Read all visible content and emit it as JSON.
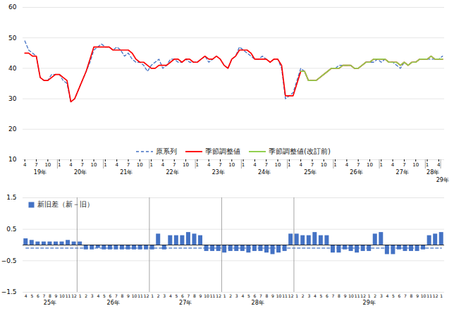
{
  "chart_data": [
    {
      "type": "line",
      "categories": [
        "4",
        null,
        null,
        "7",
        null,
        null,
        "10",
        null,
        null,
        "1",
        null,
        null,
        "4",
        null,
        null,
        "7",
        null,
        null,
        "10",
        null,
        null,
        "1",
        null,
        null,
        "4",
        null,
        null,
        "7",
        null,
        null,
        "10",
        null,
        null,
        "1",
        null,
        null,
        "4",
        null,
        null,
        "7",
        null,
        null,
        "10",
        null,
        null,
        "1",
        null,
        null,
        "4",
        null,
        null,
        "7",
        null,
        null,
        "10",
        null,
        null,
        "1",
        null,
        null,
        "4",
        null,
        null,
        "7",
        null,
        null,
        "10",
        null,
        null,
        "1",
        null,
        null,
        "4",
        null,
        null,
        "7",
        null,
        null,
        "10",
        null,
        null,
        "1",
        null,
        null,
        "4",
        null,
        null,
        "7",
        null,
        null,
        "10",
        null,
        null,
        "1",
        null,
        null,
        "4",
        null,
        null,
        "7",
        null,
        null,
        "10",
        null,
        null,
        "1",
        null,
        null,
        "4",
        null
      ],
      "series": [
        {
          "name": "原系列",
          "color": "#4472C4",
          "line_style": "dashed",
          "values": [
            49,
            46,
            45,
            44,
            37,
            36,
            36,
            38,
            38,
            38,
            36,
            35,
            29,
            30,
            33,
            36,
            39,
            42,
            46,
            47,
            48,
            47,
            47,
            46,
            47,
            46,
            44,
            45,
            43,
            42,
            42,
            41,
            39,
            41,
            42,
            43,
            40,
            41,
            43,
            43,
            42,
            42,
            43,
            42,
            42,
            42,
            43,
            44,
            42,
            43,
            44,
            43,
            41,
            40,
            43,
            44,
            47,
            46,
            45,
            44,
            43,
            43,
            44,
            43,
            42,
            43,
            43,
            40,
            30,
            31,
            32,
            36,
            40,
            39,
            36,
            36,
            36,
            37,
            38,
            39,
            40,
            40,
            41,
            41,
            41,
            41,
            40,
            40,
            41,
            42,
            42,
            42,
            43,
            42,
            43,
            42,
            42,
            41,
            40,
            42,
            41,
            42,
            42,
            43,
            43,
            43,
            43,
            43,
            43,
            44
          ]
        },
        {
          "name": "季節調整値",
          "color": "#FF0000",
          "line_style": "solid",
          "values": [
            45,
            45,
            44,
            44,
            37,
            36,
            36,
            37,
            38,
            38,
            37,
            36,
            29,
            30,
            33,
            36,
            39,
            43,
            47,
            47,
            47,
            47,
            47,
            46,
            46,
            46,
            46,
            46,
            45,
            43,
            42,
            42,
            41,
            40,
            40,
            41,
            41,
            41,
            42,
            43,
            43,
            42,
            43,
            43,
            42,
            42,
            43,
            44,
            43,
            43,
            44,
            43,
            41,
            40,
            43,
            44,
            46,
            46,
            46,
            45,
            43,
            43,
            43,
            43,
            42,
            43,
            43,
            41,
            31,
            31,
            31,
            35,
            39,
            39,
            36,
            36,
            36,
            37,
            38,
            39,
            40,
            40,
            40,
            41,
            41,
            41,
            40,
            40,
            41,
            42,
            42,
            43,
            43,
            43,
            43,
            42,
            42,
            42,
            41,
            42,
            41,
            42,
            42,
            43,
            43,
            43,
            44,
            43,
            43,
            43
          ]
        },
        {
          "name": "季節調整値(改訂前)",
          "color": "#92D050",
          "line_style": "solid",
          "values": [
            null,
            null,
            null,
            null,
            null,
            null,
            null,
            null,
            null,
            null,
            null,
            null,
            null,
            null,
            null,
            null,
            null,
            null,
            null,
            null,
            null,
            null,
            null,
            null,
            null,
            null,
            null,
            null,
            null,
            null,
            null,
            null,
            null,
            null,
            null,
            null,
            null,
            null,
            null,
            null,
            null,
            null,
            null,
            null,
            null,
            null,
            null,
            null,
            null,
            null,
            null,
            null,
            null,
            null,
            null,
            null,
            null,
            null,
            null,
            null,
            null,
            null,
            null,
            null,
            null,
            null,
            null,
            null,
            null,
            null,
            null,
            null,
            39,
            39,
            36,
            36,
            36,
            37,
            38,
            39,
            40,
            40,
            40,
            41,
            41,
            41,
            40,
            40,
            41,
            42,
            42,
            43,
            43,
            43,
            43,
            42,
            42,
            42,
            41,
            42,
            41,
            42,
            42,
            43,
            43,
            43,
            44,
            43,
            43,
            43
          ]
        }
      ],
      "ylim": [
        10,
        60
      ],
      "yticks": [
        10,
        20,
        30,
        40,
        50,
        60
      ],
      "grid": true,
      "legend": "lower center",
      "annotations": [
        {
          "text": "19年",
          "start": 0,
          "end": 8
        },
        {
          "text": "20年",
          "start": 9,
          "end": 20
        },
        {
          "text": "21年",
          "start": 21,
          "end": 32
        },
        {
          "text": "22年",
          "start": 33,
          "end": 44
        },
        {
          "text": "23年",
          "start": 45,
          "end": 56
        },
        {
          "text": "24年",
          "start": 57,
          "end": 68
        },
        {
          "text": "25年",
          "start": 69,
          "end": 80
        },
        {
          "text": "26年",
          "start": 81,
          "end": 92
        },
        {
          "text": "27年",
          "start": 93,
          "end": 104
        },
        {
          "text": "28年",
          "start": 105,
          "end": 108
        },
        {
          "text": "29年",
          "start": 109,
          "end": 109
        }
      ]
    },
    {
      "type": "bar",
      "categories": [
        "4",
        "5",
        "6",
        "7",
        "8",
        "9",
        "10",
        "11",
        "12",
        "1",
        "2",
        "3",
        "4",
        "5",
        "6",
        "7",
        "8",
        "9",
        "10",
        "11",
        "12",
        "1",
        "2",
        "3",
        "4",
        "5",
        "6",
        "7",
        "8",
        "9",
        "10",
        "11",
        "12",
        "1",
        "2",
        "3",
        "4",
        "5",
        "6",
        "7",
        "8",
        "9",
        "10",
        "11",
        "12",
        "1",
        "2",
        "3",
        "4",
        "5",
        "6",
        "7",
        "8",
        "9",
        "10",
        "11",
        "12",
        "1",
        "2",
        "3",
        "4",
        "5",
        "6",
        "7",
        "8",
        "9",
        "10",
        "11",
        "12",
        "1"
      ],
      "series": [
        {
          "name": "新旧差（新－旧）",
          "type": "bar",
          "color": "#4472C4",
          "values": [
            0.2,
            0.15,
            0.1,
            0.1,
            0.1,
            0.1,
            0.1,
            0.15,
            0.1,
            0.1,
            -0.15,
            -0.15,
            -0.1,
            -0.15,
            -0.15,
            -0.15,
            -0.15,
            -0.15,
            -0.15,
            -0.15,
            -0.15,
            -0.15,
            0.35,
            -0.15,
            0.3,
            0.3,
            0.3,
            0.4,
            0.35,
            0.3,
            -0.2,
            -0.2,
            -0.2,
            -0.25,
            -0.2,
            -0.2,
            -0.2,
            -0.25,
            -0.2,
            -0.2,
            -0.25,
            -0.3,
            -0.25,
            -0.2,
            0.35,
            0.35,
            0.3,
            0.3,
            0.4,
            0.3,
            0.3,
            -0.25,
            -0.25,
            -0.15,
            -0.2,
            -0.25,
            -0.2,
            -0.2,
            0.35,
            0.4,
            -0.3,
            -0.3,
            -0.15,
            -0.2,
            -0.2,
            -0.2,
            -0.15,
            0.3,
            0.35,
            0.4
          ]
        },
        {
          "type": "line",
          "color": "#4472C4",
          "line_style": "dashed",
          "values": [
            -0.1,
            -0.1,
            -0.1,
            -0.1,
            -0.1,
            -0.1,
            -0.1,
            -0.1,
            -0.1,
            -0.1,
            -0.1,
            -0.1,
            -0.1,
            -0.1,
            -0.1,
            -0.1,
            -0.1,
            -0.1,
            -0.1,
            -0.1,
            -0.1,
            -0.1,
            -0.1,
            -0.1,
            -0.1,
            -0.1,
            -0.1,
            -0.1,
            -0.1,
            -0.1,
            -0.1,
            -0.1,
            -0.1,
            -0.1,
            -0.1,
            -0.1,
            -0.1,
            -0.1,
            -0.1,
            -0.1,
            -0.1,
            -0.1,
            -0.1,
            -0.1,
            -0.1,
            -0.1,
            -0.1,
            -0.1,
            -0.1,
            -0.1,
            -0.1,
            -0.1,
            -0.1,
            -0.1,
            -0.1,
            -0.1,
            -0.1,
            -0.1,
            -0.1,
            -0.1,
            -0.1,
            -0.1,
            -0.1,
            -0.1,
            -0.1,
            -0.1,
            -0.1,
            -0.1,
            -0.1,
            -0.1
          ]
        }
      ],
      "ylim": [
        -1.5,
        1.5
      ],
      "yticks": [
        -1.5,
        -0.5,
        0.5,
        1.5
      ],
      "grid": true,
      "legend": "upper left",
      "annotations": [
        {
          "text": "25年",
          "start": 0,
          "end": 8
        },
        {
          "text": "26年",
          "start": 9,
          "end": 20
        },
        {
          "text": "27年",
          "start": 21,
          "end": 32
        },
        {
          "text": "28年",
          "start": 33,
          "end": 44
        },
        {
          "text": "29年",
          "start": 45,
          "end": 69
        }
      ]
    }
  ]
}
